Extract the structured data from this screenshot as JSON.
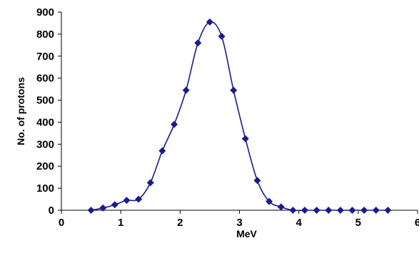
{
  "chart_data": {
    "type": "scatter",
    "title": "",
    "xlabel": "MeV",
    "ylabel": "No. of protons",
    "xlim": [
      0,
      6
    ],
    "ylim": [
      0,
      900
    ],
    "x_ticks": [
      0,
      1,
      2,
      3,
      4,
      5,
      6
    ],
    "y_ticks": [
      0,
      100,
      200,
      300,
      400,
      500,
      600,
      700,
      800,
      900
    ],
    "grid": false,
    "legend": "none",
    "line_smooth": true,
    "series_color": "#1a1a8c",
    "series": [
      {
        "x": [
          0.5,
          0.7,
          0.9,
          1.1,
          1.3,
          1.5,
          1.7,
          1.9,
          2.1,
          2.3,
          2.5,
          2.7,
          2.9,
          3.1,
          3.3,
          3.5,
          3.7,
          3.9,
          4.1,
          4.3,
          4.5,
          4.7,
          4.9,
          5.1,
          5.3,
          5.5
        ],
        "y": [
          0,
          10,
          25,
          45,
          50,
          125,
          270,
          390,
          545,
          760,
          855,
          790,
          545,
          325,
          135,
          40,
          15,
          0,
          0,
          0,
          0,
          0,
          0,
          0,
          0,
          0
        ]
      }
    ]
  }
}
